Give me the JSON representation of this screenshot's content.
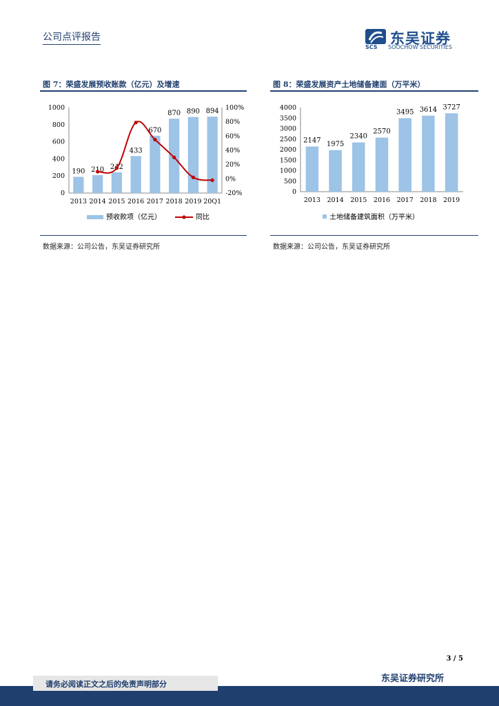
{
  "header": {
    "title": "公司点评报告"
  },
  "logo": {
    "cn": "东吴证券",
    "en": "SOOCHOW SECURITIES",
    "mark_text": "SCS"
  },
  "figures": [
    {
      "title": "图 7：荣盛发展预收账款（亿元）及增速",
      "source": "数据来源：公司公告，东吴证券研究所",
      "legend": [
        "预收款项（亿元）",
        "同比"
      ]
    },
    {
      "title": "图 8：荣盛发展资产土地储备建面（万平米）",
      "source": "数据来源：公司公告，东吴证券研究所",
      "legend": [
        "土地储备建筑面积（万平米）"
      ]
    }
  ],
  "chart_data": [
    {
      "type": "bar",
      "categories": [
        "2013",
        "2014",
        "2015",
        "2016",
        "2017",
        "2018",
        "2019",
        "20Q1"
      ],
      "series": [
        {
          "name": "预收款项（亿元）",
          "type": "bar",
          "axis": "left",
          "values": [
            190,
            210,
            242,
            433,
            670,
            870,
            890,
            894
          ],
          "color": "#9dc3e6"
        },
        {
          "name": "同比",
          "type": "line",
          "axis": "right",
          "values": [
            null,
            10,
            15,
            79,
            55,
            30,
            2,
            -2
          ],
          "color": "#c00000"
        }
      ],
      "ylim": [
        0,
        1000
      ],
      "yticks": [
        0,
        200,
        400,
        600,
        800,
        1000
      ],
      "y2lim": [
        -20,
        100
      ],
      "y2ticks": [
        "-20%",
        "0%",
        "20%",
        "40%",
        "60%",
        "80%",
        "100%"
      ],
      "legend_position": "bottom"
    },
    {
      "type": "bar",
      "categories": [
        "2013",
        "2014",
        "2015",
        "2016",
        "2017",
        "2018",
        "2019"
      ],
      "series": [
        {
          "name": "土地储备建筑面积（万平米）",
          "values": [
            2147,
            1975,
            2340,
            2570,
            3495,
            3614,
            3727
          ],
          "color": "#9dc3e6"
        }
      ],
      "ylim": [
        0,
        4000
      ],
      "yticks": [
        0,
        500,
        1000,
        1500,
        2000,
        2500,
        3000,
        3500,
        4000
      ],
      "legend_position": "bottom"
    }
  ],
  "page": {
    "number": "3 / 5"
  },
  "footer": {
    "disclaimer": "请务必阅读正文之后的免责声明部分",
    "org": "东吴证券研究所"
  }
}
